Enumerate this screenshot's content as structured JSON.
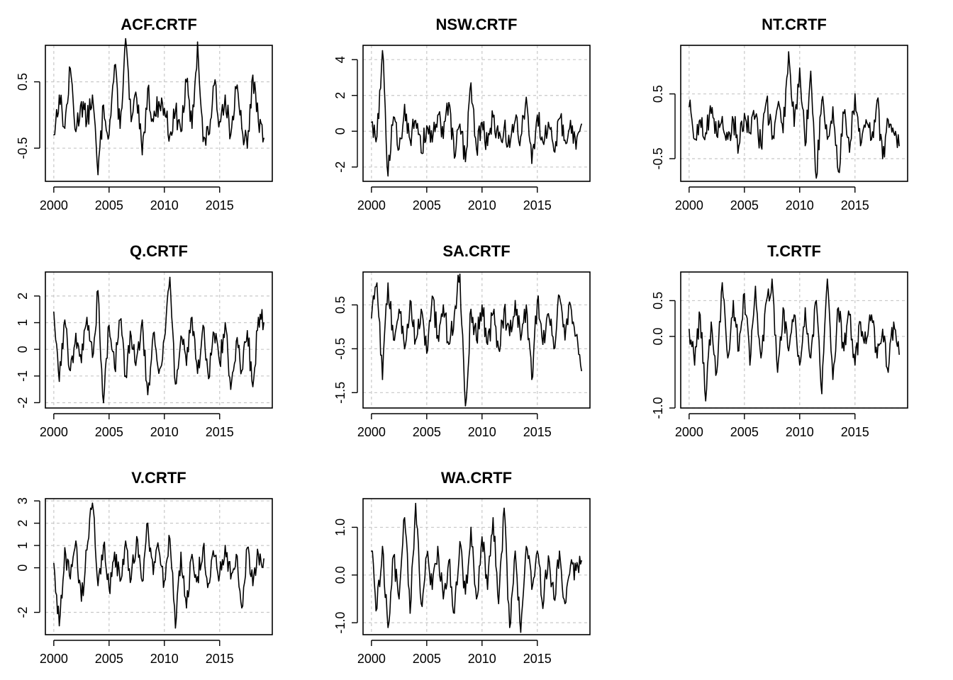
{
  "chart_data": [
    {
      "type": "line",
      "title": "ACF.CRTF",
      "xlabel": "",
      "ylabel": "",
      "xlim": [
        2000,
        2019
      ],
      "ylim": [
        -1.0,
        1.05
      ],
      "grid": true,
      "x_ticks": [
        "2000",
        "2005",
        "2010",
        "2015"
      ],
      "y_ticks": [
        "-0.5",
        "0.5"
      ],
      "y_tick_values": [
        -0.5,
        0.5
      ],
      "x": [
        2000.0,
        2000.5,
        2001.0,
        2001.5,
        2002.0,
        2002.5,
        2003.0,
        2003.5,
        2004.0,
        2004.5,
        2005.0,
        2005.5,
        2006.0,
        2006.5,
        2007.0,
        2007.5,
        2008.0,
        2008.5,
        2009.0,
        2009.5,
        2010.0,
        2010.5,
        2011.0,
        2011.5,
        2012.0,
        2012.5,
        2013.0,
        2013.5,
        2014.0,
        2014.5,
        2015.0,
        2015.5,
        2016.0,
        2016.5,
        2017.0,
        2017.5,
        2018.0,
        2018.5,
        2019.0
      ],
      "values": [
        -0.3,
        0.3,
        -0.2,
        0.7,
        -0.25,
        0.2,
        -0.1,
        0.3,
        -0.9,
        0.15,
        -0.3,
        0.75,
        -0.2,
        1.15,
        -0.1,
        0.25,
        -0.6,
        0.4,
        -0.1,
        0.2,
        0.1,
        -0.3,
        0.05,
        -0.25,
        0.5,
        -0.2,
        1.1,
        -0.4,
        -0.3,
        0.45,
        -0.1,
        0.3,
        -0.3,
        0.4,
        -0.2,
        -0.5,
        0.6,
        -0.1,
        -0.35
      ]
    },
    {
      "type": "line",
      "title": "NSW.CRTF",
      "xlabel": "",
      "ylabel": "",
      "xlim": [
        2000,
        2019
      ],
      "ylim": [
        -2.8,
        4.8
      ],
      "grid": true,
      "x_ticks": [
        "2000",
        "2005",
        "2010",
        "2015"
      ],
      "y_ticks": [
        "-2",
        "0",
        "2",
        "4"
      ],
      "y_tick_values": [
        -2,
        0,
        2,
        4
      ],
      "x": [
        2000.0,
        2000.5,
        2001.0,
        2001.5,
        2002.0,
        2002.5,
        2003.0,
        2003.5,
        2004.0,
        2004.5,
        2005.0,
        2005.5,
        2006.0,
        2006.5,
        2007.0,
        2007.5,
        2008.0,
        2008.5,
        2009.0,
        2009.5,
        2010.0,
        2010.5,
        2011.0,
        2011.5,
        2012.0,
        2012.5,
        2013.0,
        2013.5,
        2014.0,
        2014.5,
        2015.0,
        2015.5,
        2016.0,
        2016.5,
        2017.0,
        2017.5,
        2018.0,
        2018.5,
        2019.0
      ],
      "values": [
        0.5,
        -0.3,
        4.5,
        -2.5,
        0.8,
        -1.0,
        1.5,
        -0.5,
        0.6,
        -1.2,
        0.3,
        -0.6,
        0.9,
        -0.4,
        1.6,
        -1.5,
        0.4,
        -1.7,
        2.7,
        -1.0,
        0.5,
        -0.8,
        0.8,
        -0.4,
        0.2,
        -0.9,
        0.6,
        -0.3,
        1.9,
        -1.8,
        0.9,
        -0.6,
        0.5,
        -1.1,
        0.7,
        -0.5,
        0.6,
        -1.0,
        0.4
      ]
    },
    {
      "type": "line",
      "title": "NT.CRTF",
      "xlabel": "",
      "ylabel": "",
      "xlim": [
        2000,
        2019
      ],
      "ylim": [
        -0.85,
        1.25
      ],
      "grid": true,
      "x_ticks": [
        "2000",
        "2005",
        "2010",
        "2015"
      ],
      "y_ticks": [
        "-0.5",
        "0.5"
      ],
      "y_tick_values": [
        -0.5,
        0.5
      ],
      "x": [
        2000.0,
        2000.5,
        2001.0,
        2001.5,
        2002.0,
        2002.5,
        2003.0,
        2003.5,
        2004.0,
        2004.5,
        2005.0,
        2005.5,
        2006.0,
        2006.5,
        2007.0,
        2007.5,
        2008.0,
        2008.5,
        2009.0,
        2009.5,
        2010.0,
        2010.5,
        2011.0,
        2011.5,
        2012.0,
        2012.5,
        2013.0,
        2013.5,
        2014.0,
        2014.5,
        2015.0,
        2015.5,
        2016.0,
        2016.5,
        2017.0,
        2017.5,
        2018.0,
        2018.5,
        2019.0
      ],
      "values": [
        0.3,
        -0.2,
        0.1,
        -0.1,
        0.2,
        -0.15,
        0.15,
        -0.2,
        0.1,
        -0.3,
        0.2,
        -0.1,
        0.15,
        -0.3,
        0.4,
        -0.2,
        0.3,
        -0.1,
        1.15,
        0.0,
        0.9,
        -0.3,
        0.85,
        -0.8,
        0.4,
        -0.2,
        0.3,
        -0.7,
        0.2,
        -0.4,
        0.5,
        -0.3,
        0.1,
        -0.2,
        0.4,
        -0.5,
        0.1,
        -0.1,
        -0.3
      ]
    },
    {
      "type": "line",
      "title": "Q.CRTF",
      "xlabel": "",
      "ylabel": "",
      "xlim": [
        2000,
        2019
      ],
      "ylim": [
        -2.2,
        2.9
      ],
      "grid": true,
      "x_ticks": [
        "2000",
        "2005",
        "2010",
        "2015"
      ],
      "y_ticks": [
        "-2",
        "-1",
        "0",
        "1",
        "2"
      ],
      "y_tick_values": [
        -2,
        -1,
        0,
        1,
        2
      ],
      "x": [
        2000.0,
        2000.5,
        2001.0,
        2001.5,
        2002.0,
        2002.5,
        2003.0,
        2003.5,
        2004.0,
        2004.5,
        2005.0,
        2005.5,
        2006.0,
        2006.5,
        2007.0,
        2007.5,
        2008.0,
        2008.5,
        2009.0,
        2009.5,
        2010.0,
        2010.5,
        2011.0,
        2011.5,
        2012.0,
        2012.5,
        2013.0,
        2013.5,
        2014.0,
        2014.5,
        2015.0,
        2015.5,
        2016.0,
        2016.5,
        2017.0,
        2017.5,
        2018.0,
        2018.5,
        2019.0
      ],
      "values": [
        1.4,
        -1.2,
        1.1,
        -0.8,
        0.6,
        -0.5,
        1.2,
        -0.3,
        2.2,
        -2.0,
        0.9,
        -0.7,
        1.1,
        -1.0,
        0.5,
        -0.3,
        1.1,
        -1.7,
        0.6,
        -0.9,
        0.4,
        2.7,
        -1.3,
        0.5,
        -0.6,
        1.2,
        -0.9,
        0.9,
        -1.1,
        0.6,
        -0.5,
        1.0,
        -1.5,
        0.3,
        -0.8,
        0.7,
        -1.4,
        1.2,
        1.0
      ]
    },
    {
      "type": "line",
      "title": "SA.CRTF",
      "xlabel": "",
      "ylabel": "",
      "xlim": [
        2000,
        2019
      ],
      "ylim": [
        -1.85,
        1.25
      ],
      "grid": true,
      "x_ticks": [
        "2000",
        "2005",
        "2010",
        "2015"
      ],
      "y_ticks": [
        "-1.5",
        "-0.5",
        "0.5"
      ],
      "y_tick_values": [
        -1.5,
        -0.5,
        0.5
      ],
      "x": [
        2000.0,
        2000.5,
        2001.0,
        2001.5,
        2002.0,
        2002.5,
        2003.0,
        2003.5,
        2004.0,
        2004.5,
        2005.0,
        2005.5,
        2006.0,
        2006.5,
        2007.0,
        2007.5,
        2008.0,
        2008.5,
        2009.0,
        2009.5,
        2010.0,
        2010.5,
        2011.0,
        2011.5,
        2012.0,
        2012.5,
        2013.0,
        2013.5,
        2014.0,
        2014.5,
        2015.0,
        2015.5,
        2016.0,
        2016.5,
        2017.0,
        2017.5,
        2018.0,
        2018.5,
        2019.0
      ],
      "values": [
        0.2,
        1.0,
        -1.2,
        1.0,
        -0.3,
        0.4,
        -0.5,
        0.6,
        -0.3,
        0.4,
        -0.6,
        0.7,
        -0.2,
        0.5,
        -0.4,
        0.3,
        1.2,
        -1.8,
        0.4,
        -0.3,
        0.5,
        -0.4,
        0.3,
        -0.5,
        0.4,
        -0.2,
        0.6,
        -0.3,
        0.5,
        -1.2,
        0.6,
        -0.4,
        0.3,
        -0.5,
        0.7,
        -0.3,
        0.5,
        -0.2,
        -1.0
      ]
    },
    {
      "type": "line",
      "title": "T.CRTF",
      "xlabel": "",
      "ylabel": "",
      "xlim": [
        2000,
        2019
      ],
      "ylim": [
        -1.0,
        0.9
      ],
      "grid": true,
      "x_ticks": [
        "2000",
        "2005",
        "2010",
        "2015"
      ],
      "y_ticks": [
        "-1.0",
        "0.0",
        "0.5"
      ],
      "y_tick_values": [
        -1.0,
        0.0,
        0.5
      ],
      "x": [
        2000.0,
        2000.5,
        2001.0,
        2001.5,
        2002.0,
        2002.5,
        2003.0,
        2003.5,
        2004.0,
        2004.5,
        2005.0,
        2005.5,
        2006.0,
        2006.5,
        2007.0,
        2007.5,
        2008.0,
        2008.5,
        2009.0,
        2009.5,
        2010.0,
        2010.5,
        2011.0,
        2011.5,
        2012.0,
        2012.5,
        2013.0,
        2013.5,
        2014.0,
        2014.5,
        2015.0,
        2015.5,
        2016.0,
        2016.5,
        2017.0,
        2017.5,
        2018.0,
        2018.5,
        2019.0
      ],
      "values": [
        0.1,
        -0.4,
        0.3,
        -0.9,
        0.2,
        -0.5,
        0.75,
        -0.3,
        0.5,
        -0.2,
        0.6,
        -0.4,
        0.7,
        -0.3,
        0.5,
        0.8,
        -0.5,
        0.4,
        -0.2,
        0.3,
        -0.4,
        0.4,
        -0.3,
        0.5,
        -0.8,
        0.8,
        -0.6,
        0.4,
        -0.2,
        0.3,
        -0.4,
        0.2,
        -0.1,
        0.3,
        -0.3,
        0.1,
        -0.5,
        0.2,
        -0.25
      ]
    },
    {
      "type": "line",
      "title": "V.CRTF",
      "xlabel": "",
      "ylabel": "",
      "xlim": [
        2000,
        2019
      ],
      "ylim": [
        -3.0,
        3.1
      ],
      "grid": true,
      "x_ticks": [
        "2000",
        "2005",
        "2010",
        "2015"
      ],
      "y_ticks": [
        "-2",
        "0",
        "1",
        "2",
        "3"
      ],
      "y_tick_values": [
        -2,
        0,
        1,
        2,
        3
      ],
      "x": [
        2000.0,
        2000.5,
        2001.0,
        2001.5,
        2002.0,
        2002.5,
        2003.0,
        2003.5,
        2004.0,
        2004.5,
        2005.0,
        2005.5,
        2006.0,
        2006.5,
        2007.0,
        2007.5,
        2008.0,
        2008.5,
        2009.0,
        2009.5,
        2010.0,
        2010.5,
        2011.0,
        2011.5,
        2012.0,
        2012.5,
        2013.0,
        2013.5,
        2014.0,
        2014.5,
        2015.0,
        2015.5,
        2016.0,
        2016.5,
        2017.0,
        2017.5,
        2018.0,
        2018.5,
        2019.0
      ],
      "values": [
        0.2,
        -2.6,
        0.9,
        -0.5,
        1.2,
        -1.5,
        0.8,
        2.9,
        -0.8,
        1.0,
        -0.9,
        0.7,
        -0.6,
        1.2,
        -0.5,
        1.4,
        -0.6,
        2.0,
        -0.3,
        0.8,
        -0.6,
        1.3,
        -2.7,
        0.7,
        -1.8,
        0.6,
        -0.4,
        0.9,
        -0.7,
        0.5,
        -0.3,
        1.0,
        -0.5,
        0.6,
        -1.8,
        0.9,
        -0.8,
        0.6,
        0.4
      ]
    },
    {
      "type": "line",
      "title": "WA.CRTF",
      "xlabel": "",
      "ylabel": "",
      "xlim": [
        2000,
        2019
      ],
      "ylim": [
        -1.25,
        1.6
      ],
      "grid": true,
      "x_ticks": [
        "2000",
        "2005",
        "2010",
        "2015"
      ],
      "y_ticks": [
        "-1.0",
        "0.0",
        "1.0"
      ],
      "y_tick_values": [
        -1.0,
        0.0,
        1.0
      ],
      "x": [
        2000.0,
        2000.5,
        2001.0,
        2001.5,
        2002.0,
        2002.5,
        2003.0,
        2003.5,
        2004.0,
        2004.5,
        2005.0,
        2005.5,
        2006.0,
        2006.5,
        2007.0,
        2007.5,
        2008.0,
        2008.5,
        2009.0,
        2009.5,
        2010.0,
        2010.5,
        2011.0,
        2011.5,
        2012.0,
        2012.5,
        2013.0,
        2013.5,
        2014.0,
        2014.5,
        2015.0,
        2015.5,
        2016.0,
        2016.5,
        2017.0,
        2017.5,
        2018.0,
        2018.5,
        2019.0
      ],
      "values": [
        0.5,
        -0.7,
        0.6,
        -1.1,
        0.4,
        -0.5,
        1.2,
        -0.8,
        1.5,
        -0.6,
        0.4,
        -0.3,
        0.6,
        -0.5,
        0.3,
        -0.8,
        0.7,
        -0.4,
        1.0,
        -0.5,
        0.8,
        -0.3,
        1.2,
        -0.6,
        1.4,
        -1.1,
        0.5,
        -1.2,
        0.6,
        -0.3,
        0.5,
        -0.7,
        0.4,
        -0.5,
        0.5,
        -0.6,
        0.2,
        0.1,
        0.3
      ]
    }
  ]
}
